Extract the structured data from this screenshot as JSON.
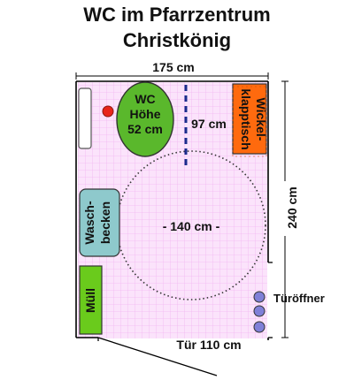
{
  "title": {
    "line1": "WC im Pfarrzentrum",
    "line2": "Christkönig"
  },
  "dimensions": {
    "width": "175 cm",
    "height": "240 cm",
    "door": "Tür 110 cm",
    "turning_circle": "- 140 cm -",
    "toilet_clearance": "97 cm"
  },
  "toilet": {
    "line1": "WC",
    "line2": "Höhe",
    "line3": "52 cm"
  },
  "changing_table": {
    "line1": "Wickel-",
    "line2": "klapptisch"
  },
  "sink": {
    "line1": "Wasch-",
    "line2": "becken"
  },
  "bin": "Müll",
  "door_opener": "Türöffner",
  "colors": {
    "floor": "#fbe3fb",
    "grid": "#f2b6f2",
    "toilet": "#5ab82c",
    "changing_table": "#ff6a0e",
    "sink": "#8ec9cc",
    "bin": "#6acb1c",
    "flush_button": "#e8261a",
    "door_opener": "#8080d8",
    "grab_bar": "#1a2c8c"
  }
}
